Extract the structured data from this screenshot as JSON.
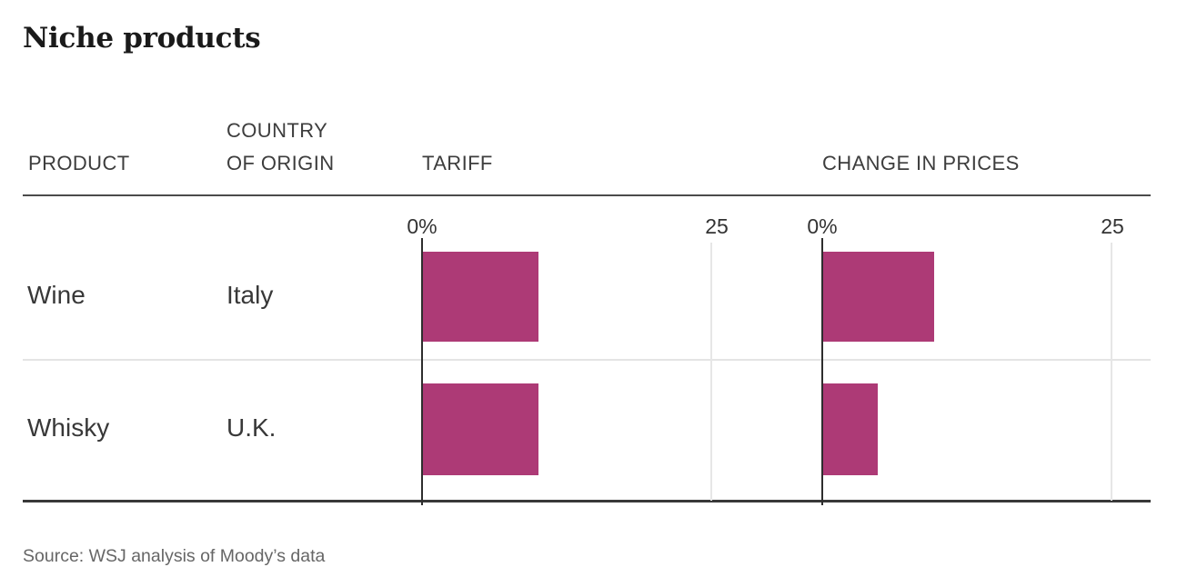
{
  "title": "Niche products",
  "columns": {
    "product": "PRODUCT",
    "origin": "COUNTRY OF ORIGIN",
    "tariff": "TARIFF",
    "change": "CHANGE IN PRICES"
  },
  "axis": {
    "zero_label": "0%",
    "max_label": "25",
    "max": 25
  },
  "rows": [
    {
      "product": "Wine",
      "origin": "Italy",
      "tariff": 10,
      "change": 9.6
    },
    {
      "product": "Whisky",
      "origin": "U.K.",
      "tariff": 10,
      "change": 4.7
    }
  ],
  "source": "Source: WSJ analysis of Moody’s data",
  "colors": {
    "bar": "#ad3a76",
    "rule_dark": "#383838",
    "grid_light": "#e6e6e6"
  },
  "chart_data": {
    "type": "bar",
    "orientation": "horizontal",
    "title": "Niche products",
    "categories": [
      "Wine (Italy)",
      "Whisky (U.K.)"
    ],
    "series": [
      {
        "name": "Tariff",
        "values": [
          10,
          10
        ]
      },
      {
        "name": "Change in prices",
        "values": [
          9.6,
          4.7
        ]
      }
    ],
    "xlim": [
      0,
      25
    ],
    "x_tick_labels": [
      "0%",
      "25"
    ],
    "grid": "single gridline at 25, dark baseline axis at 0",
    "legend": "none",
    "bar_color": "#ad3a76",
    "source": "Source: WSJ analysis of Moody’s data"
  }
}
